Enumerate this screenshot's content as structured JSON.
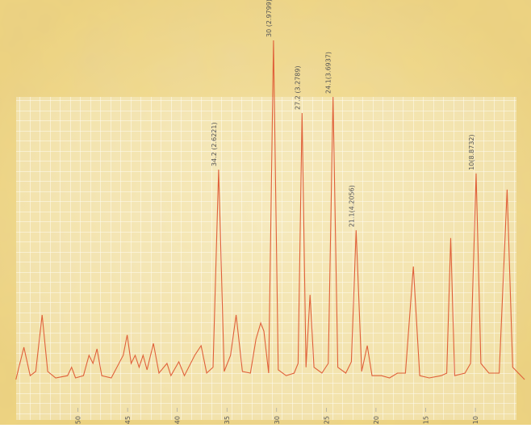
{
  "chart_data": {
    "type": "line",
    "x": [
      56.24,
      55.44,
      54.8,
      54.24,
      53.6,
      53.04,
      52.24,
      51.04,
      50.64,
      50.24,
      49.44,
      48.88,
      48.48,
      48.08,
      47.6,
      46.64,
      45.44,
      45.04,
      44.64,
      44.24,
      43.84,
      43.44,
      43.04,
      42.4,
      41.84,
      41.04,
      40.64,
      39.84,
      39.28,
      38.24,
      37.6,
      37.04,
      36.4,
      35.84,
      35.28,
      34.64,
      34.08,
      33.44,
      32.64,
      32.08,
      31.6,
      31.28,
      30.8,
      30.32,
      29.84,
      29.04,
      28.24,
      27.84,
      27.44,
      27.04,
      26.64,
      26.24,
      25.44,
      24.8,
      24.32,
      23.84,
      23.04,
      22.48,
      22.0,
      21.44,
      20.88,
      20.4,
      19.44,
      18.64,
      17.84,
      17.04,
      16.24,
      15.6,
      14.64,
      13.44,
      12.88,
      12.48,
      12.08,
      11.04,
      10.48,
      9.92,
      9.44,
      8.64,
      7.6,
      6.8,
      6.24,
      5.04
    ],
    "series": [
      {
        "color": "#e0603a",
        "values": [
          0,
          10,
          1.2,
          2.5,
          20,
          2.5,
          0.5,
          1.2,
          3.8,
          0.5,
          1.2,
          7.5,
          5,
          9.5,
          1.2,
          0.5,
          7.5,
          13.8,
          5,
          7.5,
          3.8,
          7.5,
          3,
          11.2,
          2,
          5,
          1.2,
          5.5,
          1.2,
          7.5,
          10.5,
          2,
          3.8,
          65,
          2.5,
          7.5,
          20,
          2.5,
          2,
          12.5,
          17.5,
          15,
          2,
          105,
          3,
          1.2,
          2,
          5,
          82.5,
          3.8,
          26.2,
          3.8,
          2,
          5,
          87.5,
          3.8,
          2,
          5.5,
          46.2,
          2.5,
          10.5,
          1.2,
          1.2,
          0.5,
          2,
          2,
          35,
          1.2,
          0.5,
          1.2,
          2,
          43.8,
          1.2,
          2,
          5,
          63.8,
          5,
          2,
          2,
          58.8,
          3.8,
          0
        ]
      }
    ],
    "xlim": [
      57.84,
      4.4
    ],
    "ylim": [
      -14,
      117.5
    ],
    "xticks": [
      50,
      45,
      40,
      35,
      30,
      25,
      20,
      15,
      10
    ],
    "grid": true,
    "annotations": [
      {
        "x": 35.84,
        "y": 65,
        "text": "34.2 (2.6221)"
      },
      {
        "x": 30.32,
        "y": 105,
        "text": "30 (2.9799)"
      },
      {
        "x": 27.44,
        "y": 82.5,
        "text": "27.2 (3.2789)"
      },
      {
        "x": 24.32,
        "y": 87.5,
        "text": "24.1(3.6937)"
      },
      {
        "x": 22.0,
        "y": 46.2,
        "text": "21.1(4.2056)"
      },
      {
        "x": 9.92,
        "y": 63.8,
        "text": "10(8.8732)"
      }
    ]
  }
}
